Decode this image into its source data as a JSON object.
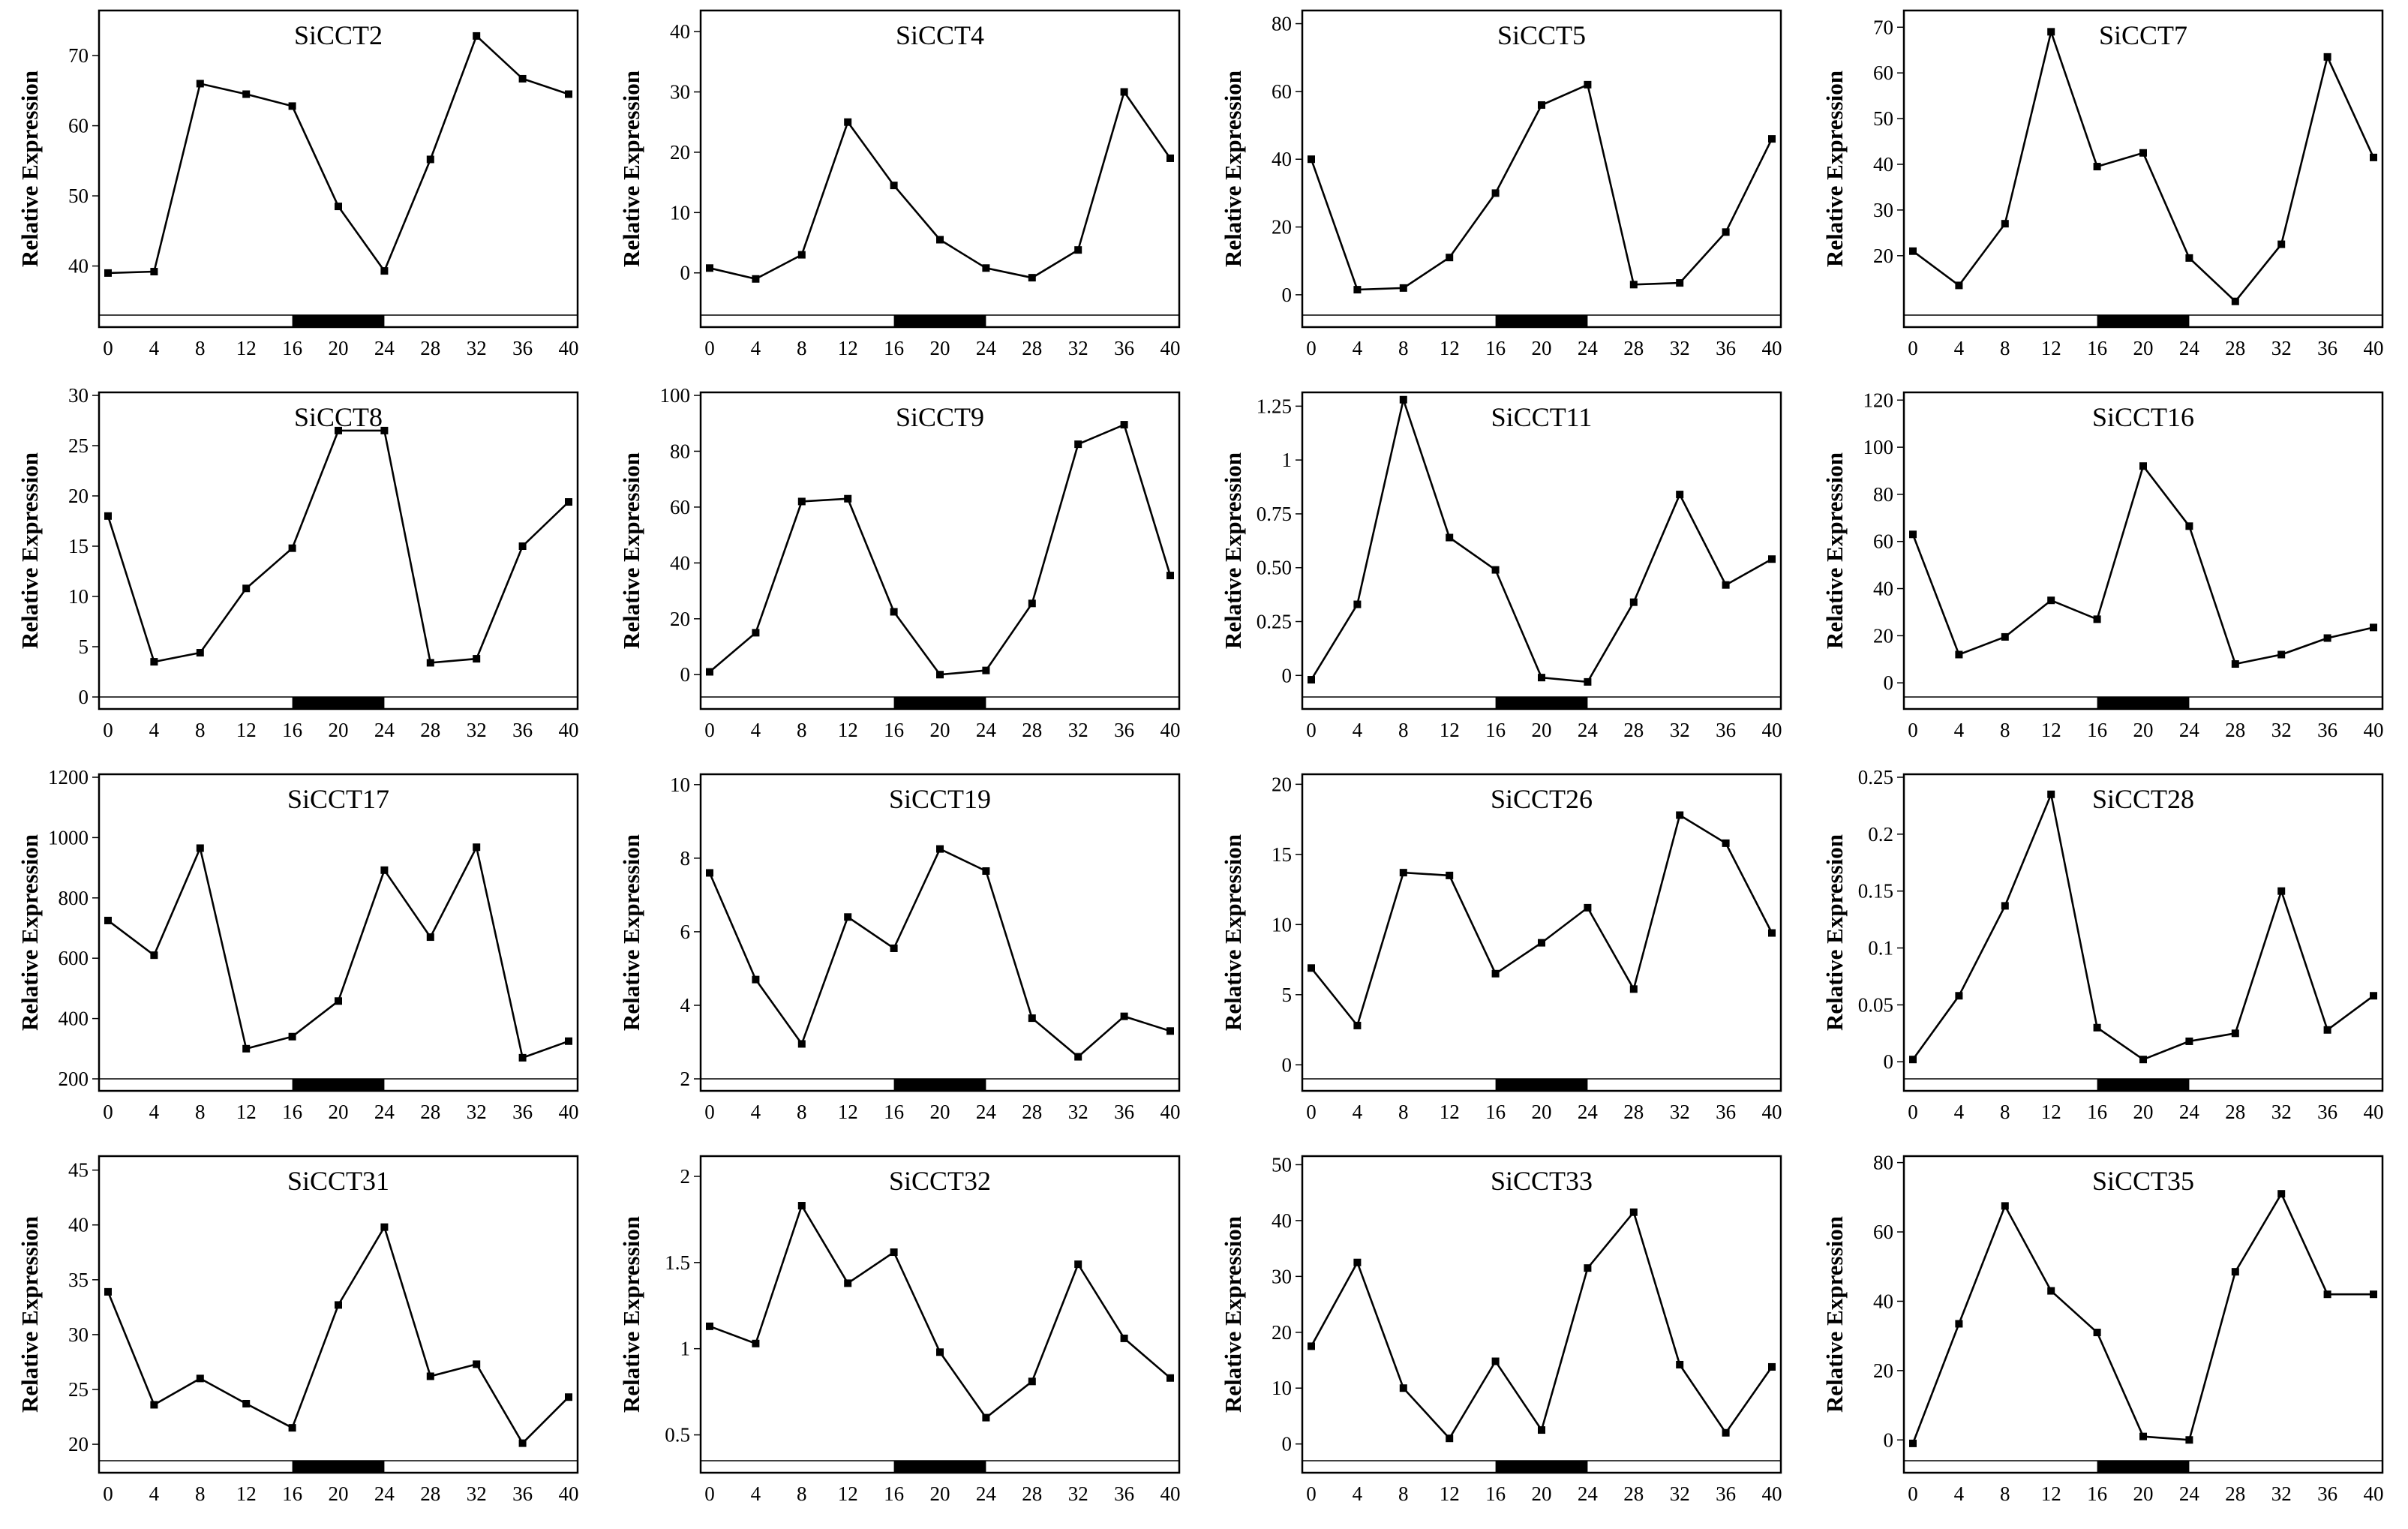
{
  "figure": {
    "x_ticks": [
      0,
      4,
      8,
      12,
      16,
      20,
      24,
      28,
      32,
      36,
      40
    ],
    "dark_period": [
      16,
      24
    ],
    "line_color": "#000000",
    "background": "#ffffff"
  },
  "chart_data": [
    {
      "type": "line",
      "title": "SiCCT2",
      "ylabel": "Relative Expression",
      "xlabel": "",
      "x": [
        0,
        4,
        8,
        12,
        16,
        20,
        24,
        28,
        32,
        36,
        40
      ],
      "values": [
        39,
        39.2,
        66,
        64.5,
        62.8,
        48.5,
        39.3,
        55.2,
        72.8,
        66.7,
        64.5
      ],
      "ylim": [
        33,
        76
      ],
      "yticks": [
        40,
        50,
        60,
        70
      ],
      "ytick_labels": [
        "40",
        "50",
        "60",
        "70"
      ]
    },
    {
      "type": "line",
      "title": "SiCCT4",
      "ylabel": "Relative Expression",
      "xlabel": "",
      "x": [
        0,
        4,
        8,
        12,
        16,
        20,
        24,
        28,
        32,
        36,
        40
      ],
      "values": [
        0.8,
        -1,
        3,
        25,
        14.5,
        5.5,
        0.8,
        -0.8,
        3.8,
        30,
        19
      ],
      "ylim": [
        -7,
        43
      ],
      "yticks": [
        0,
        10,
        20,
        30,
        40
      ],
      "ytick_labels": [
        "0",
        "10",
        "20",
        "30",
        "40"
      ]
    },
    {
      "type": "line",
      "title": "SiCCT5",
      "ylabel": "Relative Expression",
      "xlabel": "",
      "x": [
        0,
        4,
        8,
        12,
        16,
        20,
        24,
        28,
        32,
        36,
        40
      ],
      "values": [
        40,
        1.5,
        2,
        11,
        30,
        56,
        62,
        3,
        3.5,
        18.5,
        46
      ],
      "ylim": [
        -6,
        83
      ],
      "yticks": [
        0,
        20,
        40,
        60,
        80
      ],
      "ytick_labels": [
        "0",
        "20",
        "40",
        "60",
        "80"
      ]
    },
    {
      "type": "line",
      "title": "SiCCT7",
      "ylabel": "Relative Expression",
      "xlabel": "",
      "x": [
        0,
        4,
        8,
        12,
        16,
        20,
        24,
        28,
        32,
        36,
        40
      ],
      "values": [
        21,
        13.5,
        27,
        69,
        39.5,
        42.5,
        19.5,
        10,
        22.5,
        63.5,
        41.5
      ],
      "ylim": [
        7,
        73
      ],
      "yticks": [
        20,
        30,
        40,
        50,
        60,
        70
      ],
      "ytick_labels": [
        "20",
        "30",
        "40",
        "50",
        "60",
        "70"
      ]
    },
    {
      "type": "line",
      "title": "SiCCT8",
      "ylabel": "Relative Expression",
      "xlabel": "",
      "x": [
        0,
        4,
        8,
        12,
        16,
        20,
        24,
        28,
        32,
        36,
        40
      ],
      "values": [
        18,
        3.5,
        4.4,
        10.8,
        14.8,
        26.5,
        26.5,
        3.4,
        3.8,
        15,
        19.4
      ],
      "ylim": [
        0,
        30
      ],
      "yticks": [
        0,
        5,
        10,
        15,
        20,
        25,
        30
      ],
      "ytick_labels": [
        "0",
        "5",
        "10",
        "15",
        "20",
        "25",
        "30"
      ]
    },
    {
      "type": "line",
      "title": "SiCCT9",
      "ylabel": "Relative Expression",
      "xlabel": "",
      "x": [
        0,
        4,
        8,
        12,
        16,
        20,
        24,
        28,
        32,
        36,
        40
      ],
      "values": [
        1,
        15,
        62,
        63,
        22.5,
        0,
        1.5,
        25.5,
        82.5,
        89.5,
        35.5
      ],
      "ylim": [
        -8,
        100
      ],
      "yticks": [
        0,
        20,
        40,
        60,
        80,
        100
      ],
      "ytick_labels": [
        "0",
        "20",
        "40",
        "60",
        "80",
        "100"
      ]
    },
    {
      "type": "line",
      "title": "SiCCT11",
      "ylabel": "Relative Expression",
      "xlabel": "",
      "x": [
        0,
        4,
        8,
        12,
        16,
        20,
        24,
        28,
        32,
        36,
        40
      ],
      "values": [
        -0.02,
        0.33,
        1.28,
        0.64,
        0.49,
        -0.01,
        -0.03,
        0.34,
        0.84,
        0.42,
        0.54
      ],
      "ylim": [
        -0.1,
        1.3
      ],
      "yticks": [
        0,
        0.25,
        0.5,
        0.75,
        1,
        1.25
      ],
      "ytick_labels": [
        "0",
        "0.25",
        "0.50",
        "0.75",
        "1",
        "1.25"
      ]
    },
    {
      "type": "line",
      "title": "SiCCT16",
      "ylabel": "Relative Expression",
      "xlabel": "",
      "x": [
        0,
        4,
        8,
        12,
        16,
        20,
        24,
        28,
        32,
        36,
        40
      ],
      "values": [
        63,
        12,
        19.5,
        35,
        27,
        92,
        66.5,
        8,
        12,
        19,
        23.5
      ],
      "ylim": [
        -6,
        122
      ],
      "yticks": [
        0,
        20,
        40,
        60,
        80,
        100,
        120
      ],
      "ytick_labels": [
        "0",
        "20",
        "40",
        "60",
        "80",
        "100",
        "120"
      ]
    },
    {
      "type": "line",
      "title": "SiCCT17",
      "ylabel": "Relative Expression",
      "xlabel": "",
      "x": [
        0,
        4,
        8,
        12,
        16,
        20,
        24,
        28,
        32,
        36,
        40
      ],
      "values": [
        725,
        610,
        965,
        300,
        340,
        458,
        892,
        670,
        968,
        270,
        325
      ],
      "ylim": [
        200,
        1200
      ],
      "yticks": [
        200,
        400,
        600,
        800,
        1000,
        1200
      ],
      "ytick_labels": [
        "200",
        "400",
        "600",
        "800",
        "1000",
        "1200"
      ]
    },
    {
      "type": "line",
      "title": "SiCCT19",
      "ylabel": "Relative Expression",
      "xlabel": "",
      "x": [
        0,
        4,
        8,
        12,
        16,
        20,
        24,
        28,
        32,
        36,
        40
      ],
      "values": [
        7.6,
        4.7,
        2.95,
        6.4,
        5.55,
        8.25,
        7.65,
        3.65,
        2.6,
        3.7,
        3.3
      ],
      "ylim": [
        2,
        10.2
      ],
      "yticks": [
        2,
        4,
        6,
        8,
        10
      ],
      "ytick_labels": [
        "2",
        "4",
        "6",
        "8",
        "10"
      ]
    },
    {
      "type": "line",
      "title": "SiCCT26",
      "ylabel": "Relative Expression",
      "xlabel": "",
      "x": [
        0,
        4,
        8,
        12,
        16,
        20,
        24,
        28,
        32,
        36,
        40
      ],
      "values": [
        6.9,
        2.8,
        13.7,
        13.5,
        6.5,
        8.7,
        11.2,
        5.4,
        17.8,
        15.8,
        9.4
      ],
      "ylim": [
        -1,
        20.5
      ],
      "yticks": [
        0,
        5,
        10,
        15,
        20
      ],
      "ytick_labels": [
        "0",
        "5",
        "10",
        "15",
        "20"
      ]
    },
    {
      "type": "line",
      "title": "SiCCT28",
      "ylabel": "Relative Expression",
      "xlabel": "",
      "x": [
        0,
        4,
        8,
        12,
        16,
        20,
        24,
        28,
        32,
        36,
        40
      ],
      "values": [
        0.002,
        0.058,
        0.137,
        0.235,
        0.03,
        0.002,
        0.018,
        0.025,
        0.15,
        0.028,
        0.058
      ],
      "ylim": [
        -0.015,
        0.25
      ],
      "yticks": [
        0,
        0.05,
        0.1,
        0.15,
        0.2,
        0.25
      ],
      "ytick_labels": [
        "0",
        "0.05",
        "0.1",
        "0.15",
        "0.2",
        "0.25"
      ]
    },
    {
      "type": "line",
      "title": "SiCCT31",
      "ylabel": "Relative Expression",
      "xlabel": "",
      "x": [
        0,
        4,
        8,
        12,
        16,
        20,
        24,
        28,
        32,
        36,
        40
      ],
      "values": [
        33.9,
        23.6,
        26,
        23.7,
        21.5,
        32.7,
        39.8,
        26.2,
        27.3,
        20.1,
        24.3
      ],
      "ylim": [
        18.5,
        46
      ],
      "yticks": [
        20,
        25,
        30,
        35,
        40,
        45
      ],
      "ytick_labels": [
        "20",
        "25",
        "30",
        "35",
        "40",
        "45"
      ]
    },
    {
      "type": "line",
      "title": "SiCCT32",
      "ylabel": "Relative Expression",
      "xlabel": "",
      "x": [
        0,
        4,
        8,
        12,
        16,
        20,
        24,
        28,
        32,
        36,
        40
      ],
      "values": [
        1.13,
        1.03,
        1.83,
        1.38,
        1.56,
        0.98,
        0.6,
        0.81,
        1.49,
        1.06,
        0.83
      ],
      "ylim": [
        0.35,
        2.1
      ],
      "yticks": [
        0.5,
        1,
        1.5,
        2
      ],
      "ytick_labels": [
        "0.5",
        "1",
        "1.5",
        "2"
      ]
    },
    {
      "type": "line",
      "title": "SiCCT33",
      "ylabel": "Relative Expression",
      "xlabel": "",
      "x": [
        0,
        4,
        8,
        12,
        16,
        20,
        24,
        28,
        32,
        36,
        40
      ],
      "values": [
        17.5,
        32.5,
        10,
        1,
        14.8,
        2.5,
        31.5,
        41.5,
        14.2,
        2,
        13.8
      ],
      "ylim": [
        -3,
        51
      ],
      "yticks": [
        0,
        10,
        20,
        30,
        40,
        50
      ],
      "ytick_labels": [
        "0",
        "10",
        "20",
        "30",
        "40",
        "50"
      ]
    },
    {
      "type": "line",
      "title": "SiCCT35",
      "ylabel": "Relative Expression",
      "xlabel": "",
      "x": [
        0,
        4,
        8,
        12,
        16,
        20,
        24,
        28,
        32,
        36,
        40
      ],
      "values": [
        -1,
        33.5,
        67.5,
        43,
        31,
        1,
        0,
        48.5,
        71,
        42,
        42
      ],
      "ylim": [
        -6,
        81
      ],
      "yticks": [
        0,
        20,
        40,
        60,
        80
      ],
      "ytick_labels": [
        "0",
        "20",
        "40",
        "60",
        "80"
      ]
    }
  ]
}
